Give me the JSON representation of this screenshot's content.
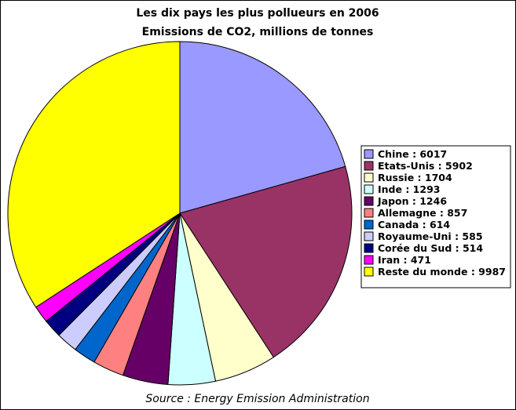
{
  "chart_data": {
    "type": "pie",
    "title": "Les dix pays les plus pollueurs en 2006",
    "subtitle": "Emissions de CO2, millions de tonnes",
    "source": "Source : Energy Emission Administration",
    "legend_position": "right",
    "slices": [
      {
        "label": "Chine : 6017",
        "value": 6017,
        "color": "#9999ff"
      },
      {
        "label": "Etats-Unis : 5902",
        "value": 5902,
        "color": "#993366"
      },
      {
        "label": "Russie : 1704",
        "value": 1704,
        "color": "#ffffcc"
      },
      {
        "label": "Inde : 1293",
        "value": 1293,
        "color": "#ccffff"
      },
      {
        "label": "Japon : 1246",
        "value": 1246,
        "color": "#660066"
      },
      {
        "label": "Allemagne : 857",
        "value": 857,
        "color": "#ff8080"
      },
      {
        "label": "Canada : 614",
        "value": 614,
        "color": "#0066cc"
      },
      {
        "label": "Royaume-Uni : 585",
        "value": 585,
        "color": "#ccccff"
      },
      {
        "label": "Corée du Sud : 514",
        "value": 514,
        "color": "#000080"
      },
      {
        "label": "Iran : 471",
        "value": 471,
        "color": "#ff00ff"
      },
      {
        "label": "Reste du monde : 9987",
        "value": 9987,
        "color": "#ffff00"
      }
    ]
  }
}
